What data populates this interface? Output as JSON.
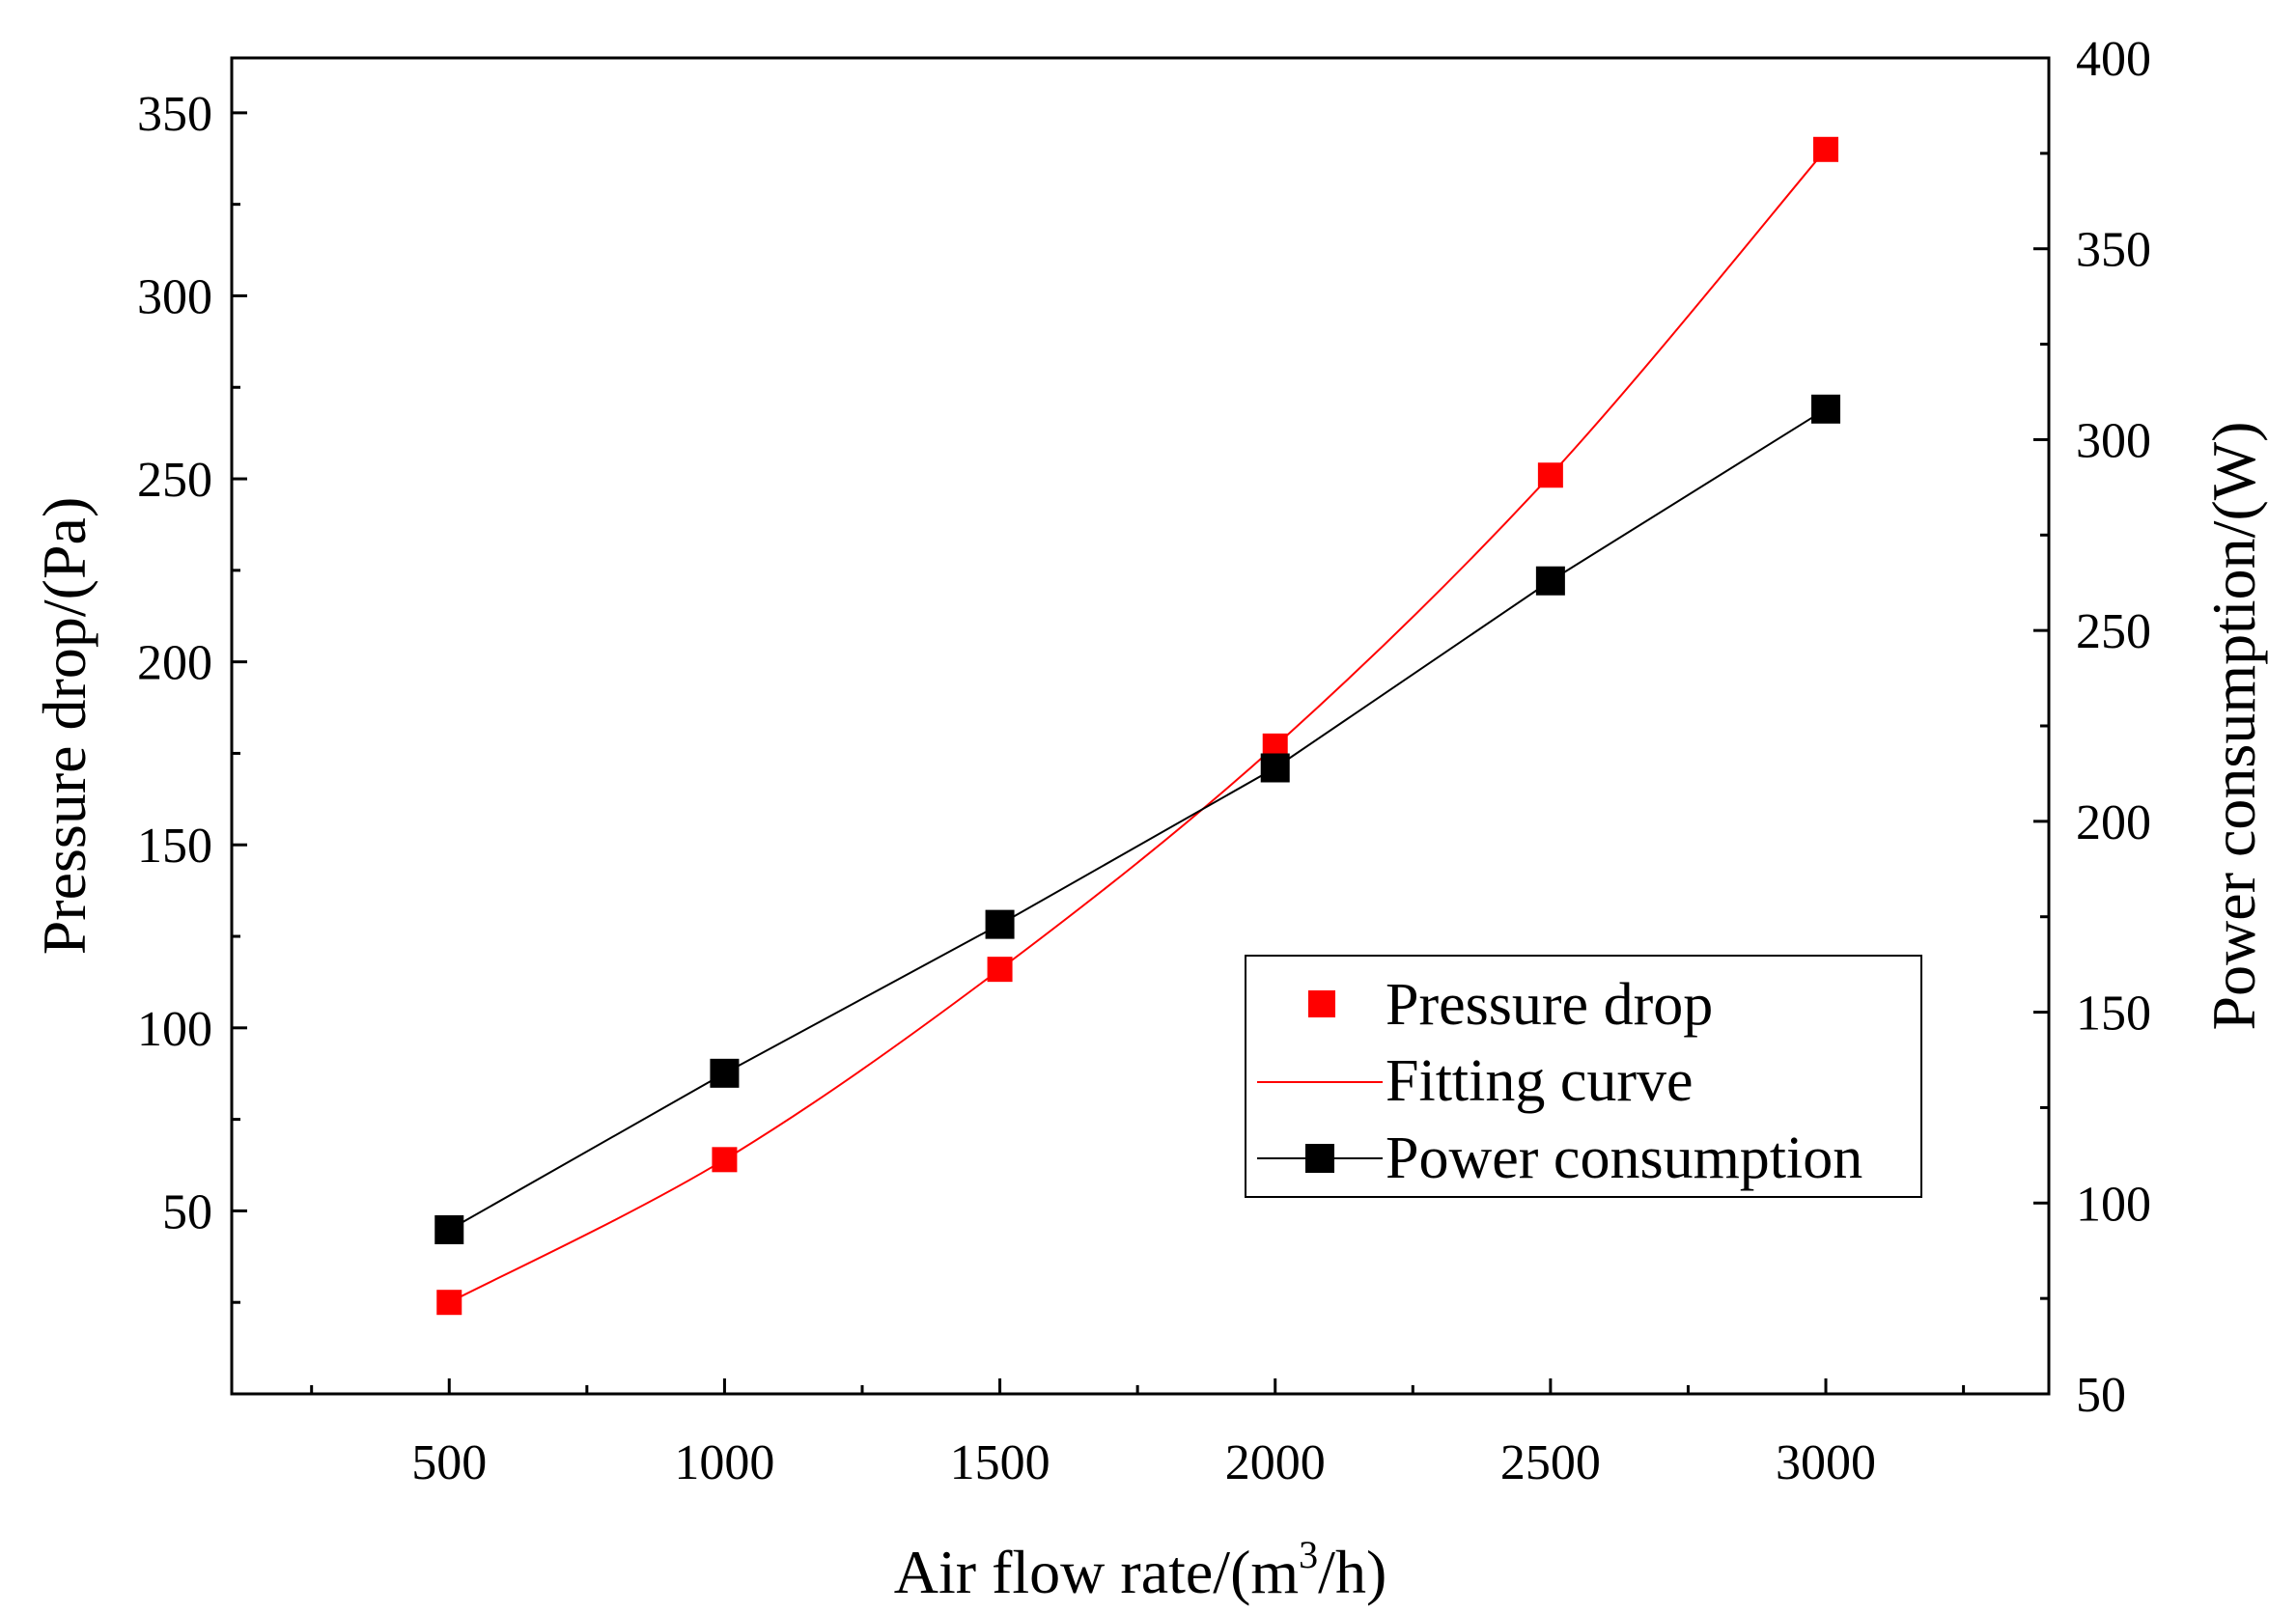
{
  "chart_data": {
    "type": "line",
    "title": "",
    "xlabel": "Air flow rate/(m3/h)",
    "xlabel_parts": {
      "main": "Air flow rate/(m",
      "sup": "3",
      "tail": "/h)"
    },
    "ylabel_left": "Pressure drop/(Pa)",
    "ylabel_right": "Power consumption/(W)",
    "xlim": [
      105,
      3405
    ],
    "ylim_left": [
      0,
      365
    ],
    "ylim_right": [
      50,
      400
    ],
    "x_ticks": [
      500,
      1000,
      1500,
      2000,
      2500,
      3000
    ],
    "x_tick_labels": [
      "500",
      "1000",
      "1500",
      "2000",
      "2500",
      "3000"
    ],
    "y_left_ticks": [
      50,
      100,
      150,
      200,
      250,
      300,
      350
    ],
    "y_left_tick_labels": [
      "50",
      "100",
      "150",
      "200",
      "250",
      "300",
      "350"
    ],
    "y_right_ticks": [
      50,
      100,
      150,
      200,
      250,
      300,
      350,
      400
    ],
    "y_right_tick_labels": [
      "50",
      "100",
      "150",
      "200",
      "250",
      "300",
      "350",
      "400"
    ],
    "grid": false,
    "legend_position": "lower-right",
    "series": [
      {
        "name": "Pressure drop",
        "axis": "left",
        "style": "markers",
        "color": "#ff0000",
        "x": [
          500,
          1000,
          1500,
          2000,
          2500,
          3000
        ],
        "values": [
          25,
          64,
          116,
          177,
          251,
          340
        ]
      },
      {
        "name": "Fitting curve",
        "axis": "left",
        "style": "line",
        "color": "#ff0000",
        "x": [
          500,
          1000,
          1500,
          2000,
          2500,
          3000
        ],
        "values": [
          25,
          64,
          116,
          177,
          251,
          340
        ]
      },
      {
        "name": "Power consumption",
        "axis": "right",
        "style": "line+markers",
        "color": "#000000",
        "x": [
          500,
          1000,
          1500,
          2000,
          2500,
          3000
        ],
        "values": [
          93,
          134,
          173,
          214,
          263,
          308
        ]
      }
    ]
  }
}
